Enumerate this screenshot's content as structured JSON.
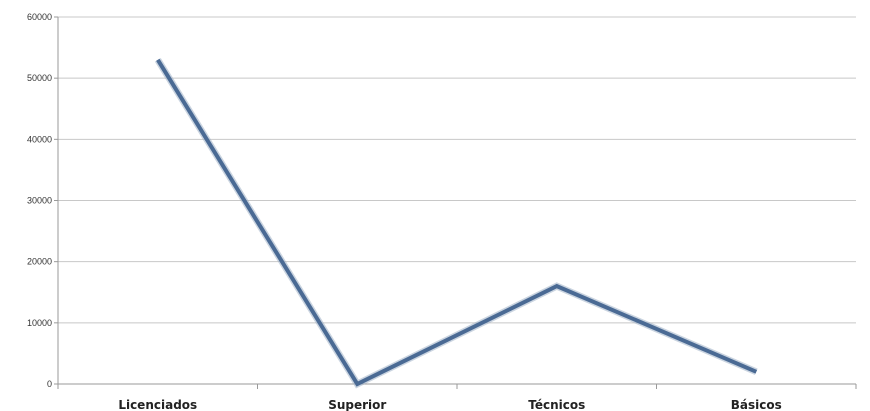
{
  "chart_data": {
    "type": "line",
    "categories": [
      "Licenciados",
      "Superior",
      "Técnicos",
      "Básicos"
    ],
    "series": [
      {
        "values": [
          53000,
          0,
          16000,
          2000
        ],
        "color": "#4a6a94"
      }
    ],
    "ylim": [
      0,
      60000
    ],
    "yticks": [
      "0",
      "10000",
      "20000",
      "30000",
      "40000",
      "50000",
      "60000"
    ],
    "grid": true,
    "legend": "none",
    "title": "",
    "xlabel": "",
    "ylabel": ""
  }
}
